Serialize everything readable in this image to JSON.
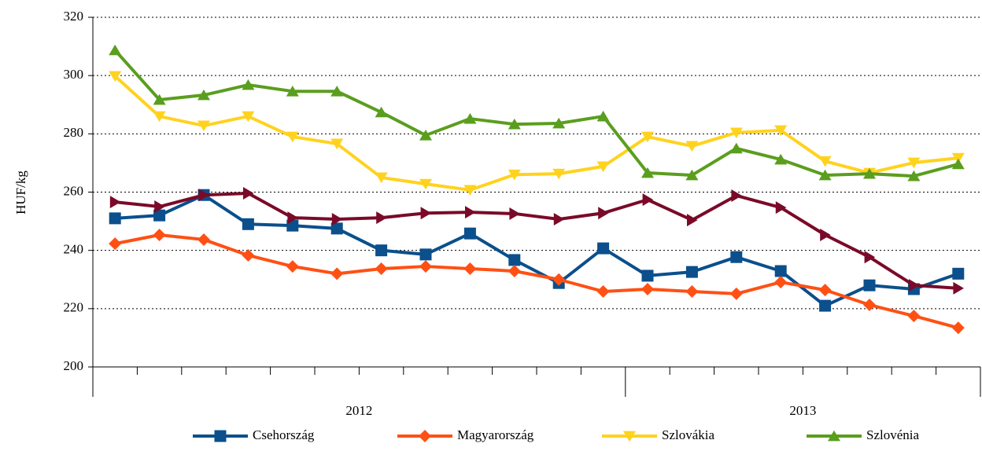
{
  "chart_data": {
    "type": "line",
    "categories": [
      "2012",
      "2012",
      "2012",
      "2012",
      "2012",
      "2012",
      "2012",
      "2012",
      "2012",
      "2012",
      "2012",
      "2012",
      "2013",
      "2013",
      "2013",
      "2013",
      "2013",
      "2013",
      "2013",
      "2013"
    ],
    "ylabel": "HUF/kg",
    "ylim": [
      200,
      320
    ],
    "yticks": [
      200,
      220,
      240,
      260,
      280,
      300,
      320
    ],
    "grid": true,
    "legend": "bottom",
    "series": [
      {
        "name": "Csehország",
        "color": "#0b4f8c",
        "marker": "square",
        "values": [
          251,
          252,
          259,
          249,
          248.5,
          247.5,
          240,
          238.6,
          245.8,
          236.7,
          228.8,
          240.7,
          231.3,
          232.6,
          237.7,
          232.9,
          221,
          228,
          226.7,
          232
        ]
      },
      {
        "name": "Magyarország",
        "color": "#ff5014",
        "marker": "diamond",
        "values": [
          242.3,
          245.3,
          243.7,
          238.3,
          234.5,
          232,
          233.7,
          234.5,
          233.7,
          232.9,
          230,
          225.9,
          226.7,
          225.9,
          225.1,
          229.1,
          226.4,
          221.3,
          217.5,
          213.4
        ]
      },
      {
        "name": "Szlovákia",
        "color": "#ffd21e",
        "marker": "triangle-down",
        "values": [
          299.8,
          286,
          282.8,
          286,
          279,
          276.6,
          265,
          262.8,
          260.7,
          266,
          266.3,
          268.8,
          279,
          275.8,
          280.4,
          281.2,
          270.6,
          266.6,
          270.1,
          271.7
        ]
      },
      {
        "name": "Szlovénia",
        "color": "#5a9e1e",
        "marker": "triangle-up",
        "values": [
          308.7,
          291.7,
          293.3,
          296.8,
          294.6,
          294.6,
          287.4,
          279.5,
          285.2,
          283.3,
          283.6,
          286,
          266.6,
          265.8,
          275,
          271.2,
          265.8,
          266.3,
          265.5,
          269.6
        ]
      },
      {
        "color": "#7a0a28",
        "marker": "triangle-right",
        "values": [
          256.6,
          255,
          259,
          259.6,
          251.2,
          250.7,
          251.2,
          252.8,
          253.1,
          252.6,
          250.7,
          252.8,
          257.4,
          250.4,
          258.8,
          254.7,
          245.3,
          237.7,
          228,
          227
        ]
      }
    ]
  }
}
